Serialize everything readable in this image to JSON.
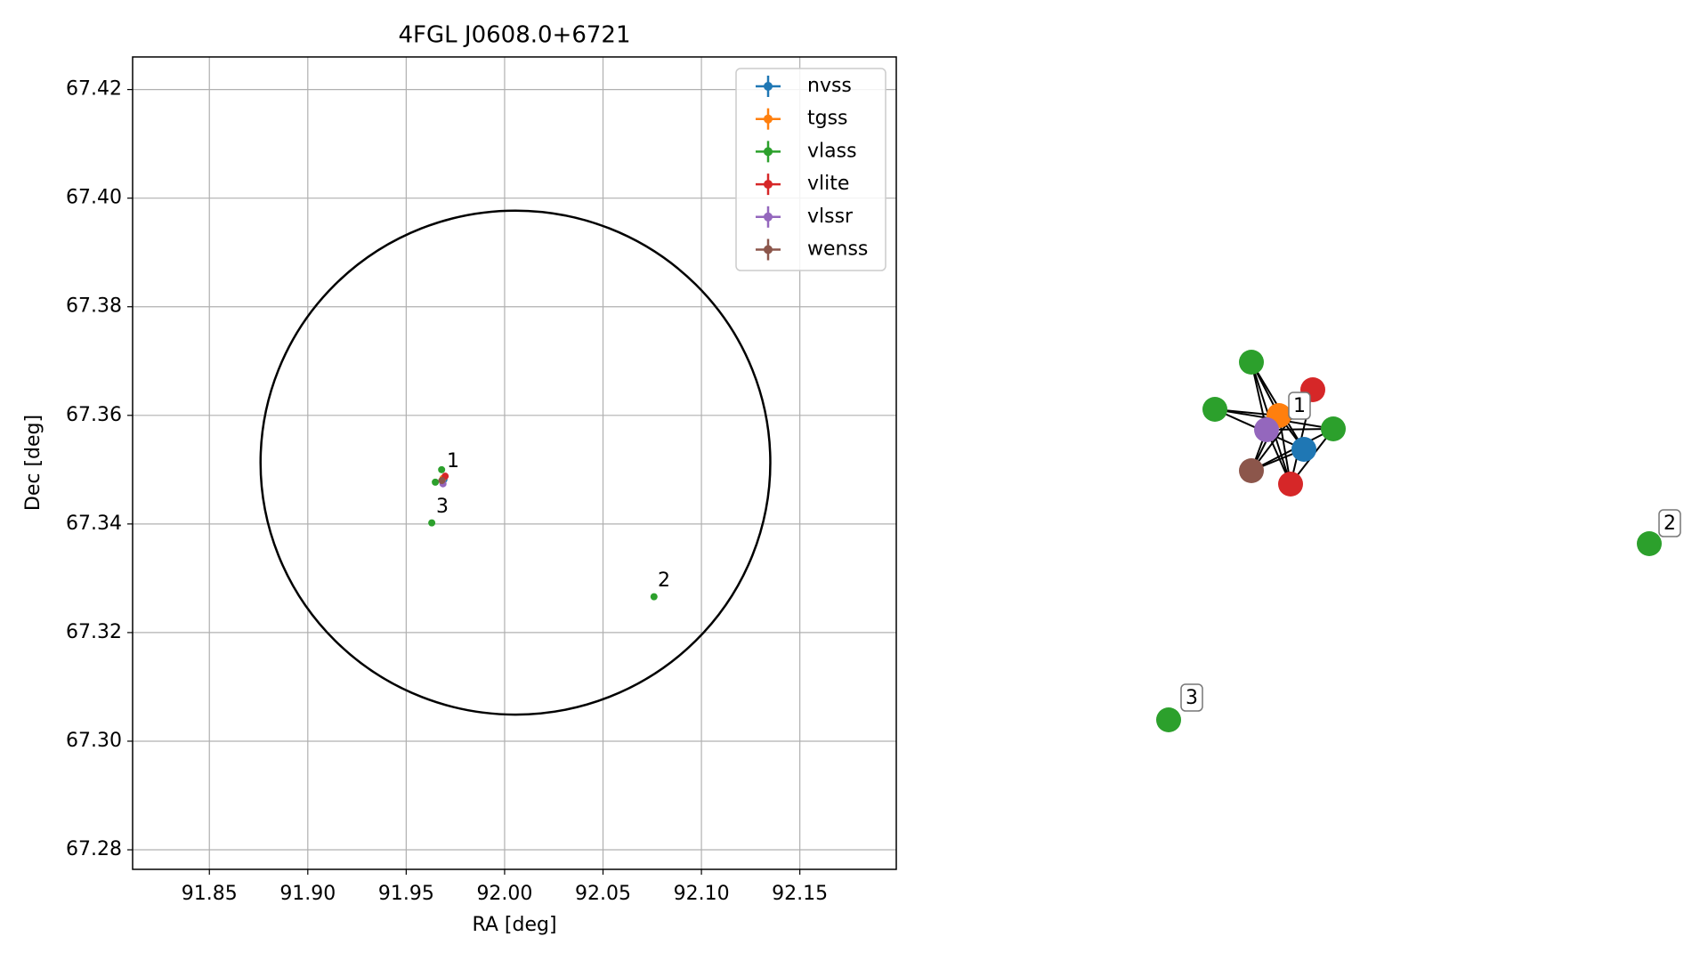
{
  "chart_data": {
    "type": "scatter",
    "title": "4FGL J0608.0+6721",
    "xlabel": "RA [deg]",
    "ylabel": "Dec [deg]",
    "xlim": [
      91.811,
      92.199
    ],
    "ylim": [
      67.2764,
      67.426
    ],
    "xticks": [
      91.85,
      {
        "value": 91.9,
        "label": "91.90"
      },
      91.95,
      {
        "value": 92.0,
        "label": "92.00"
      },
      92.05,
      {
        "value": 92.1,
        "label": "92.10"
      },
      92.15
    ],
    "yticks": [
      67.28,
      {
        "value": 67.3,
        "label": "67.30"
      },
      67.32,
      67.34,
      67.36,
      67.38,
      {
        "value": 67.4,
        "label": "67.40"
      },
      67.42
    ],
    "grid": true,
    "legend": "upper right",
    "circle": {
      "center": [
        92.0055,
        67.3513
      ],
      "radius_ra": 0.1295,
      "radius_dec": 0.0464
    },
    "series": [
      {
        "name": "nvss",
        "color": "#1f77b4",
        "x": [
          91.9692
        ],
        "values": [
          67.3482
        ]
      },
      {
        "name": "tgss",
        "color": "#ff7f0e",
        "x": [
          91.9687
        ],
        "values": [
          67.3484
        ]
      },
      {
        "name": "vlass",
        "color": "#2ca02c",
        "x": [
          91.968,
          91.9648,
          91.963,
          92.0759
        ],
        "values": [
          67.35,
          67.3477,
          67.3402,
          67.3266
        ]
      },
      {
        "name": "vlite",
        "color": "#d62728",
        "x": [
          91.9698
        ],
        "values": [
          67.3488
        ]
      },
      {
        "name": "vlssr",
        "color": "#9467bd",
        "x": [
          91.9687
        ],
        "values": [
          67.3474
        ]
      },
      {
        "name": "wenss",
        "color": "#8c564b",
        "x": [
          91.9681
        ],
        "values": [
          67.348
        ]
      }
    ],
    "annotations": [
      "1",
      "2",
      "3"
    ]
  }
}
